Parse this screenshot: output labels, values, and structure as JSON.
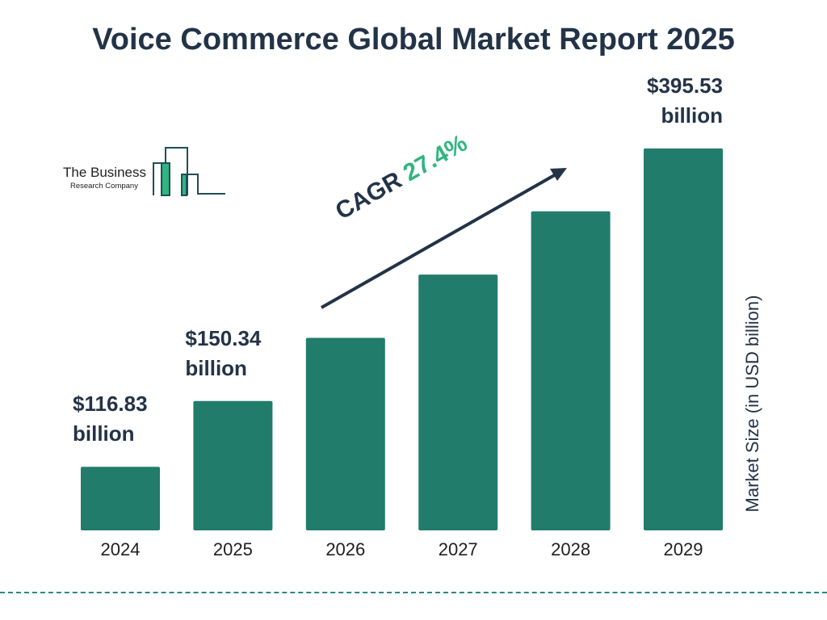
{
  "title": "Voice Commerce Global Market Report 2025",
  "logo": {
    "name": "The Business",
    "sub": "Research Company",
    "colors": {
      "outline": "#1f4e5a",
      "fill": "#2fb57f"
    }
  },
  "cagr": {
    "label": "CAGR",
    "value": "27.4%"
  },
  "colors": {
    "bar": "#217c6c",
    "text": "#233347",
    "accent": "#2fb57f"
  },
  "chart_data": {
    "type": "bar",
    "title": "Voice Commerce Global Market Report 2025",
    "categories": [
      "2024",
      "2025",
      "2026",
      "2027",
      "2028",
      "2029"
    ],
    "values": [
      116.83,
      150.34,
      191.5,
      244.0,
      310.9,
      395.53
    ],
    "data_labels": [
      {
        "category": "2024",
        "line1": "$116.83",
        "line2": "billion"
      },
      {
        "category": "2025",
        "line1": "$150.34",
        "line2": "billion"
      },
      {
        "category": "2029",
        "line1": "$395.53",
        "line2": "billion"
      }
    ],
    "xlabel": "",
    "ylabel": "Market Size (in USD billion)",
    "yscale": "log",
    "ylim": [
      91.6,
      453
    ],
    "grid": false,
    "legend": "none"
  }
}
